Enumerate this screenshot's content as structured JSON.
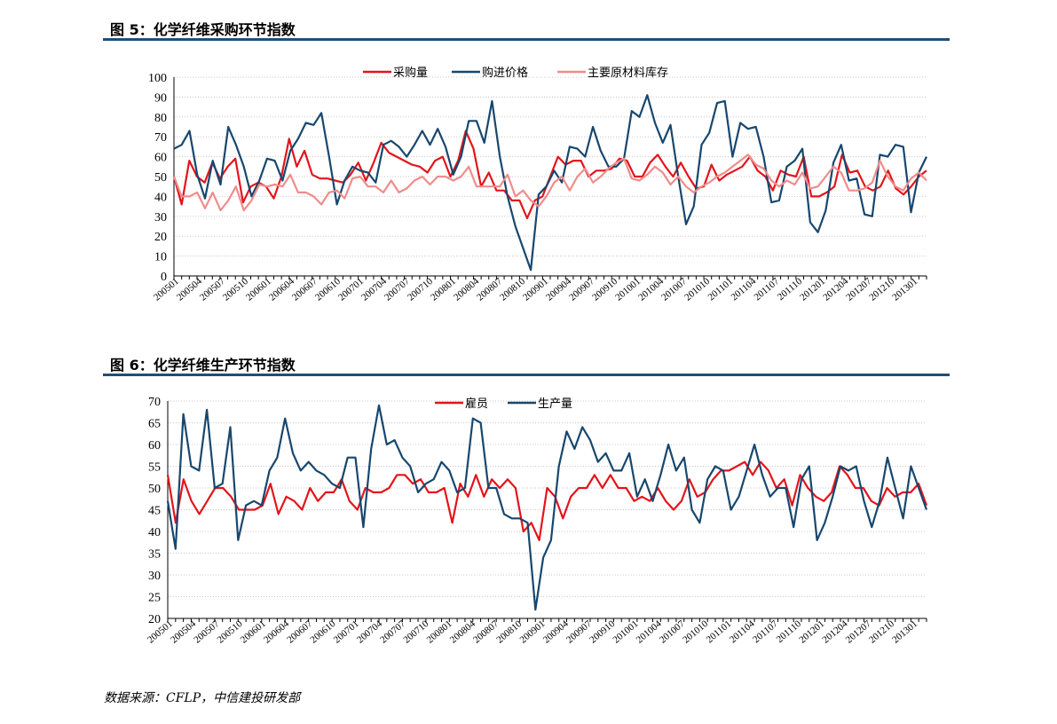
{
  "figures": [
    {
      "title": "图 5：化学纤维采购环节指数"
    },
    {
      "title": "图 6：化学纤维生产环节指数"
    }
  ],
  "source": "数据来源：CFLP，中信建投研发部",
  "colors": {
    "red": "#e3141b",
    "navy": "#17476e",
    "pink": "#f08c8c",
    "rule": "#1f4e79",
    "grid": "#c8c8c8"
  },
  "chart_data": [
    {
      "type": "line",
      "title": "图 5：化学纤维采购环节指数",
      "ylim": [
        0,
        100
      ],
      "yticks": [
        0,
        10,
        20,
        30,
        40,
        50,
        60,
        70,
        80,
        90,
        100
      ],
      "x_labels": [
        "200501",
        "200504",
        "200507",
        "200510",
        "200601",
        "200604",
        "200607",
        "200610",
        "200701",
        "200704",
        "200707",
        "200710",
        "200801",
        "200804",
        "200807",
        "200810",
        "200901",
        "200904",
        "200907",
        "200910",
        "201001",
        "201004",
        "201007",
        "201010",
        "201101",
        "201104",
        "201107",
        "201110",
        "201201",
        "201204",
        "201207",
        "201210",
        "201301"
      ],
      "legend_position": "top-center",
      "series": [
        {
          "name": "采购量",
          "color": "#e3141b",
          "values": [
            50,
            36,
            58,
            50,
            47,
            57,
            49,
            55,
            59,
            37,
            45,
            47,
            45,
            39,
            50,
            69,
            55,
            63,
            51,
            49,
            49,
            48,
            47,
            51,
            57,
            48,
            57,
            67,
            62,
            60,
            58,
            56,
            55,
            52,
            58,
            60,
            50,
            58,
            73,
            64,
            45,
            52,
            43,
            43,
            38,
            38,
            29,
            38,
            40,
            50,
            60,
            56,
            58,
            58,
            50,
            53,
            53,
            54,
            59,
            58,
            50,
            50,
            57,
            61,
            55,
            50,
            57,
            50,
            44,
            45,
            56,
            48,
            51,
            53,
            55,
            60,
            53,
            50,
            43,
            53,
            51,
            50,
            60,
            40,
            40,
            42,
            45,
            61,
            52,
            53,
            45,
            43,
            45,
            53,
            44,
            41,
            45,
            50,
            53
          ]
        },
        {
          "name": "购进价格",
          "color": "#17476e",
          "values": [
            64,
            66,
            73,
            51,
            39,
            58,
            46,
            75,
            66,
            55,
            40,
            48,
            59,
            58,
            48,
            63,
            69,
            77,
            76,
            82,
            60,
            36,
            48,
            55,
            53,
            52,
            47,
            66,
            68,
            65,
            60,
            66,
            73,
            66,
            74,
            65,
            51,
            60,
            78,
            78,
            67,
            88,
            60,
            40,
            25,
            14,
            3,
            41,
            45,
            53,
            47,
            65,
            64,
            60,
            75,
            63,
            55,
            55,
            59,
            83,
            80,
            91,
            77,
            67,
            76,
            50,
            26,
            35,
            66,
            72,
            87,
            88,
            60,
            77,
            74,
            75,
            60,
            37,
            38,
            55,
            58,
            64,
            27,
            22,
            33,
            57,
            66,
            48,
            49,
            31,
            30,
            61,
            60,
            66,
            65,
            32,
            52,
            60
          ]
        },
        {
          "name": "主要原材料库存",
          "color": "#f08c8c",
          "values": [
            50,
            40,
            40,
            42,
            34,
            42,
            33,
            38,
            45,
            33,
            38,
            46,
            45,
            46,
            45,
            51,
            42,
            42,
            40,
            36,
            42,
            43,
            39,
            49,
            50,
            45,
            45,
            42,
            48,
            42,
            44,
            48,
            50,
            46,
            50,
            50,
            48,
            50,
            55,
            45,
            45,
            45,
            45,
            51,
            40,
            43,
            38,
            35,
            40,
            47,
            50,
            43,
            50,
            54,
            47,
            50,
            54,
            57,
            59,
            49,
            48,
            51,
            55,
            52,
            46,
            50,
            45,
            42,
            45,
            47,
            50,
            52,
            55,
            58,
            61,
            56,
            54,
            48,
            45,
            48,
            46,
            52,
            44,
            45,
            50,
            55,
            52,
            43,
            43,
            44,
            47,
            58,
            50,
            45,
            43,
            49,
            52,
            48
          ]
        }
      ]
    },
    {
      "type": "line",
      "title": "图 6：化学纤维生产环节指数",
      "ylim": [
        20,
        70
      ],
      "yticks": [
        20,
        25,
        30,
        35,
        40,
        45,
        50,
        55,
        60,
        65,
        70
      ],
      "x_labels": [
        "200501",
        "200504",
        "200507",
        "200510",
        "200601",
        "200604",
        "200607",
        "200610",
        "200701",
        "200704",
        "200707",
        "200710",
        "200801",
        "200804",
        "200807",
        "200810",
        "200901",
        "200904",
        "200907",
        "200910",
        "201001",
        "201004",
        "201007",
        "201010",
        "201101",
        "201104",
        "201107",
        "201110",
        "201201",
        "201204",
        "201207",
        "201210",
        "201301"
      ],
      "legend_position": "top-center",
      "series": [
        {
          "name": "雇员",
          "color": "#e3141b",
          "values": [
            53,
            42,
            52,
            47,
            44,
            47,
            50,
            50,
            48,
            45,
            45,
            45,
            46,
            51,
            44,
            48,
            47,
            45,
            50,
            47,
            49,
            49,
            52,
            47,
            45,
            50,
            49,
            49,
            50,
            53,
            53,
            51,
            52,
            49,
            49,
            50,
            42,
            51,
            48,
            53,
            48,
            52,
            50,
            52,
            50,
            40,
            42,
            38,
            50,
            48,
            43,
            48,
            50,
            50,
            53,
            50,
            53,
            50,
            50,
            47,
            48,
            47,
            50,
            47,
            45,
            47,
            52,
            48,
            49,
            52,
            54,
            54,
            55,
            56,
            53,
            56,
            54,
            50,
            52,
            46,
            53,
            50,
            48,
            47,
            49,
            55,
            53,
            50,
            50,
            47,
            46,
            50,
            48,
            49,
            49,
            51,
            46
          ]
        },
        {
          "name": "生产量",
          "color": "#17476e",
          "values": [
            47,
            36,
            67,
            55,
            54,
            68,
            50,
            51,
            64,
            38,
            46,
            47,
            46,
            54,
            57,
            66,
            58,
            54,
            56,
            54,
            53,
            51,
            50,
            57,
            57,
            41,
            59,
            69,
            60,
            61,
            57,
            55,
            49,
            51,
            52,
            56,
            54,
            49,
            50,
            66,
            65,
            50,
            50,
            44,
            43,
            43,
            42,
            22,
            34,
            38,
            55,
            63,
            59,
            64,
            61,
            56,
            58,
            54,
            54,
            58,
            48,
            52,
            47,
            53,
            60,
            54,
            57,
            45,
            42,
            52,
            55,
            54,
            45,
            48,
            54,
            60,
            53,
            48,
            50,
            50,
            41,
            52,
            55,
            38,
            42,
            48,
            55,
            54,
            55,
            47,
            41,
            47,
            57,
            50,
            43,
            55,
            50,
            45
          ]
        }
      ]
    }
  ]
}
